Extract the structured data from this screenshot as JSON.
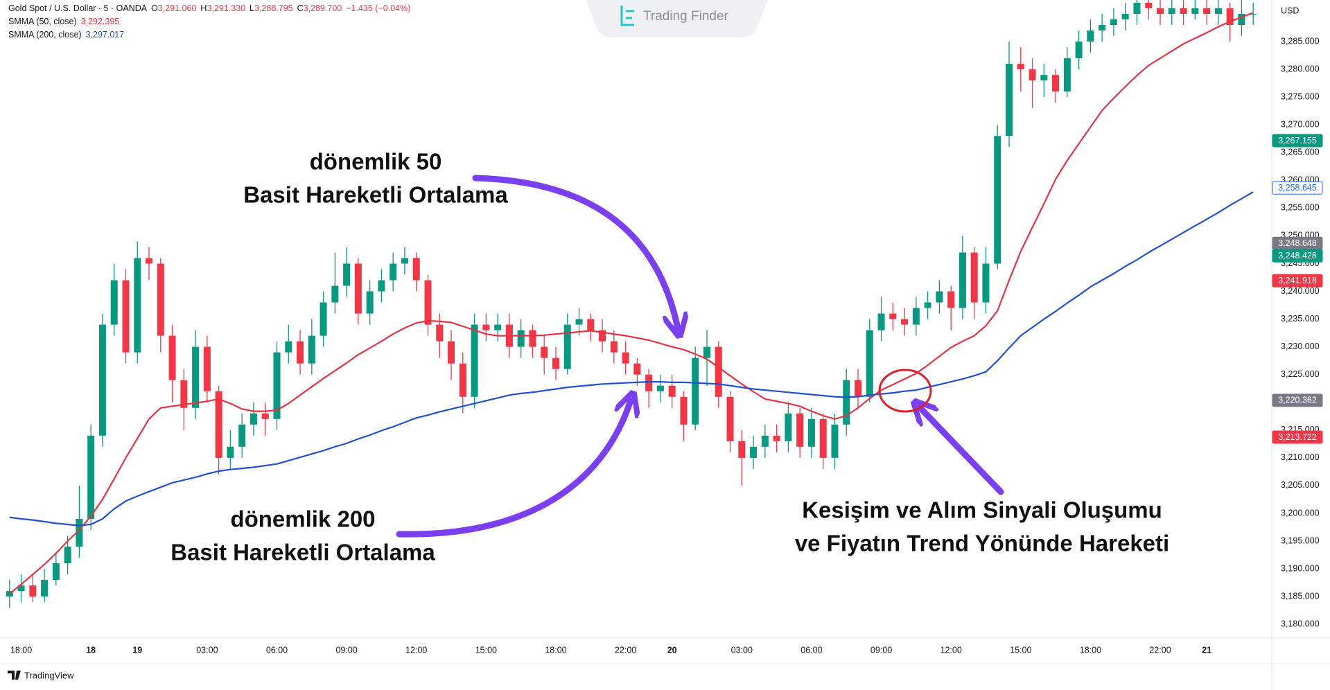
{
  "chart_data": {
    "type": "candlestick",
    "status": {
      "symbol": "Gold Spot / U.S. Dollar · 5 · OANDA",
      "ohlc": [
        [
          "O",
          "3,291.060"
        ],
        [
          "H",
          "3,291.330"
        ],
        [
          "L",
          "3,288.795"
        ],
        [
          "C",
          "3,289.700"
        ]
      ],
      "change": "−1.435 (−0.04%)"
    },
    "axis_unit": "USD",
    "watermark": "Trading Finder",
    "brand": "TradingView",
    "up_color": "#089981",
    "down_color": "#f23645",
    "grid": false,
    "categories": [
      null,
      "18:00",
      null,
      null,
      null,
      null,
      null,
      "18",
      null,
      null,
      null,
      "19",
      null,
      null,
      null,
      null,
      null,
      "03:00",
      null,
      null,
      null,
      null,
      null,
      "06:00",
      null,
      null,
      null,
      null,
      null,
      "09:00",
      null,
      null,
      null,
      null,
      null,
      "12:00",
      null,
      null,
      null,
      null,
      null,
      "15:00",
      null,
      null,
      null,
      null,
      null,
      "18:00",
      null,
      null,
      null,
      null,
      null,
      "22:00",
      null,
      null,
      null,
      "20",
      null,
      null,
      null,
      null,
      null,
      "03:00",
      null,
      null,
      null,
      null,
      null,
      "06:00",
      null,
      null,
      null,
      null,
      null,
      "09:00",
      null,
      null,
      null,
      null,
      null,
      "12:00",
      null,
      null,
      null,
      null,
      null,
      "15:00",
      null,
      null,
      null,
      null,
      null,
      "18:00",
      null,
      null,
      null,
      null,
      null,
      "22:00",
      null,
      null,
      null,
      "21",
      null,
      null,
      null,
      null
    ],
    "open": [
      3185,
      3186,
      3187,
      3185,
      3188,
      3191,
      3194,
      3199,
      3214,
      3234,
      3242,
      3229,
      3246,
      3245,
      3232,
      3224,
      3219,
      3230,
      3222,
      3210,
      3212,
      3216,
      3218,
      3217,
      3229,
      3231,
      3227,
      3232,
      3238,
      3241,
      3245,
      3236,
      3240,
      3242,
      3245,
      3246,
      3242,
      3234,
      3231,
      3227,
      3221,
      3234,
      3233,
      3234,
      3230,
      3233,
      3230,
      3228,
      3226,
      3234,
      3235,
      3233,
      3231,
      3229,
      3227,
      3225,
      3222,
      3223,
      3221,
      3216,
      3228,
      3230,
      3221,
      3213,
      3210,
      3212,
      3214,
      3213,
      3218,
      3212,
      3217,
      3210,
      3216,
      3224,
      3221,
      3233,
      3236,
      3235,
      3234,
      3237,
      3238,
      3240,
      3237,
      3247,
      3238,
      3245,
      3268,
      3281,
      3280,
      3278,
      3279,
      3276,
      3282,
      3285,
      3287,
      3288,
      3289,
      3290,
      3292,
      3291,
      3290,
      3291,
      3290,
      3291,
      3290,
      3291,
      3288,
      3290
    ],
    "high": [
      3188,
      3189,
      3189,
      3190,
      3193,
      3196,
      3205,
      3216,
      3236,
      3245,
      3244,
      3249,
      3248,
      3246,
      3234,
      3226,
      3233,
      3232,
      3223,
      3215,
      3218,
      3220,
      3220,
      3231,
      3234,
      3233,
      3235,
      3240,
      3247,
      3248,
      3246,
      3242,
      3244,
      3247,
      3248,
      3247,
      3243,
      3236,
      3233,
      3229,
      3236,
      3236,
      3236,
      3236,
      3235,
      3234,
      3232,
      3230,
      3236,
      3237,
      3236,
      3235,
      3233,
      3231,
      3228,
      3226,
      3225,
      3225,
      3222,
      3230,
      3233,
      3231,
      3222,
      3215,
      3214,
      3216,
      3216,
      3220,
      3219,
      3219,
      3218,
      3218,
      3226,
      3226,
      3235,
      3239,
      3238,
      3237,
      3239,
      3240,
      3242,
      3241,
      3250,
      3248,
      3248,
      3270,
      3285,
      3284,
      3282,
      3281,
      3280,
      3284,
      3287,
      3289,
      3290,
      3291,
      3292,
      3294,
      3294,
      3293,
      3293,
      3293,
      3293,
      3293,
      3294,
      3292,
      3293,
      3292
    ],
    "low": [
      3183,
      3184,
      3184,
      3184,
      3187,
      3189,
      3192,
      3197,
      3212,
      3232,
      3227,
      3227,
      3242,
      3229,
      3220,
      3215,
      3217,
      3220,
      3207,
      3208,
      3210,
      3214,
      3214,
      3215,
      3227,
      3225,
      3225,
      3230,
      3236,
      3239,
      3234,
      3234,
      3238,
      3240,
      3243,
      3240,
      3232,
      3228,
      3224,
      3218,
      3219,
      3231,
      3231,
      3228,
      3228,
      3228,
      3225,
      3224,
      3225,
      3232,
      3231,
      3229,
      3227,
      3225,
      3223,
      3219,
      3220,
      3219,
      3213,
      3215,
      3223,
      3219,
      3211,
      3205,
      3208,
      3210,
      3211,
      3211,
      3210,
      3210,
      3208,
      3208,
      3214,
      3219,
      3220,
      3231,
      3233,
      3232,
      3232,
      3235,
      3236,
      3233,
      3235,
      3235,
      3236,
      3244,
      3266,
      3276,
      3273,
      3275,
      3274,
      3275,
      3280,
      3283,
      3285,
      3286,
      3287,
      3288,
      3289,
      3288,
      3288,
      3288,
      3289,
      3288,
      3288,
      3285,
      3286,
      3288
    ],
    "close": [
      3186,
      3187,
      3185,
      3188,
      3191,
      3194,
      3199,
      3214,
      3234,
      3242,
      3229,
      3246,
      3245,
      3232,
      3224,
      3219,
      3230,
      3222,
      3210,
      3212,
      3216,
      3218,
      3217,
      3229,
      3231,
      3227,
      3232,
      3238,
      3241,
      3245,
      3236,
      3240,
      3242,
      3245,
      3246,
      3242,
      3234,
      3231,
      3227,
      3221,
      3234,
      3233,
      3234,
      3230,
      3233,
      3230,
      3228,
      3226,
      3234,
      3235,
      3233,
      3231,
      3229,
      3227,
      3225,
      3222,
      3223,
      3221,
      3216,
      3228,
      3230,
      3221,
      3213,
      3210,
      3212,
      3214,
      3213,
      3218,
      3212,
      3217,
      3210,
      3216,
      3224,
      3221,
      3233,
      3236,
      3235,
      3234,
      3237,
      3238,
      3240,
      3237,
      3247,
      3238,
      3245,
      3268,
      3281,
      3280,
      3278,
      3279,
      3276,
      3282,
      3285,
      3287,
      3288,
      3289,
      3290,
      3292,
      3291,
      3290,
      3291,
      3290,
      3291,
      3290,
      3291,
      3288,
      3290,
      3290
    ],
    "series": [
      {
        "name": "SMMA (50, close)",
        "legend_value": "3,292.395",
        "color": "#e8323f",
        "values": [
          3185.5,
          3187.2,
          3189.0,
          3190.8,
          3192.8,
          3195.0,
          3197.0,
          3199.5,
          3202.5,
          3206.2,
          3210.0,
          3213.5,
          3217.0,
          3219.0,
          3219.3,
          3219.6,
          3219.9,
          3220.2,
          3220.6,
          3219.8,
          3218.8,
          3218.4,
          3218.4,
          3218.6,
          3219.8,
          3221.3,
          3222.8,
          3224.3,
          3225.7,
          3227.1,
          3228.6,
          3229.8,
          3231.0,
          3232.3,
          3233.4,
          3234.3,
          3234.7,
          3234.6,
          3234.4,
          3233.7,
          3233.0,
          3232.3,
          3232.0,
          3232.0,
          3232.0,
          3232.0,
          3232.1,
          3232.3,
          3232.5,
          3232.7,
          3232.9,
          3232.6,
          3232.3,
          3232.0,
          3231.6,
          3231.2,
          3230.6,
          3230.0,
          3229.5,
          3228.7,
          3227.8,
          3226.3,
          3224.8,
          3223.3,
          3221.9,
          3220.6,
          3220.2,
          3219.8,
          3219.3,
          3218.4,
          3217.6,
          3217.0,
          3217.6,
          3219.0,
          3220.7,
          3222.2,
          3223.2,
          3224.2,
          3225.2,
          3226.7,
          3228.3,
          3229.9,
          3231.0,
          3232.0,
          3233.8,
          3236.5,
          3242.0,
          3247.2,
          3251.5,
          3255.8,
          3260.2,
          3263.6,
          3266.6,
          3269.6,
          3272.6,
          3274.8,
          3276.9,
          3278.9,
          3280.7,
          3282.0,
          3283.3,
          3284.6,
          3285.6,
          3286.6,
          3287.7,
          3288.6,
          3289.4,
          3290.2
        ]
      },
      {
        "name": "SMMA (200, close)",
        "legend_value": "3,297.017",
        "color": "#1f4fd6",
        "values": [
          3199.3,
          3199.0,
          3198.8,
          3198.5,
          3198.2,
          3198.0,
          3197.8,
          3198.0,
          3199.0,
          3200.8,
          3202.2,
          3203.1,
          3203.9,
          3204.7,
          3205.5,
          3206.0,
          3206.5,
          3207.1,
          3207.6,
          3207.9,
          3208.1,
          3208.3,
          3208.6,
          3208.9,
          3209.5,
          3210.1,
          3210.7,
          3211.3,
          3212.0,
          3212.6,
          3213.4,
          3214.1,
          3214.9,
          3215.6,
          3216.4,
          3217.2,
          3217.7,
          3218.3,
          3218.8,
          3219.3,
          3219.8,
          3220.3,
          3220.8,
          3221.3,
          3221.6,
          3221.8,
          3222.1,
          3222.4,
          3222.7,
          3222.9,
          3223.1,
          3223.3,
          3223.4,
          3223.5,
          3223.6,
          3223.7,
          3223.7,
          3223.6,
          3223.6,
          3223.5,
          3223.4,
          3223.3,
          3223.0,
          3222.7,
          3222.4,
          3222.2,
          3222.0,
          3221.8,
          3221.6,
          3221.4,
          3221.2,
          3221.0,
          3220.9,
          3221.0,
          3221.3,
          3221.5,
          3221.7,
          3222.0,
          3222.2,
          3222.7,
          3223.2,
          3223.7,
          3224.2,
          3224.8,
          3225.5,
          3227.5,
          3229.8,
          3232.0,
          3233.5,
          3235.0,
          3236.4,
          3237.9,
          3239.3,
          3240.8,
          3242.0,
          3243.2,
          3244.5,
          3245.7,
          3247.0,
          3248.2,
          3249.4,
          3250.6,
          3251.8,
          3253.0,
          3254.2,
          3255.5,
          3256.7,
          3257.9
        ]
      }
    ],
    "ylim": [
      3177.9,
      3292.5
    ],
    "yticks": [
      {
        "value": 3180,
        "label": "3,180.000"
      },
      {
        "value": 3185,
        "label": "3,185.000"
      },
      {
        "value": 3190,
        "label": "3,190.000"
      },
      {
        "value": 3195,
        "label": "3,195.000"
      },
      {
        "value": 3200,
        "label": "3,200.000"
      },
      {
        "value": 3205,
        "label": "3,205.000"
      },
      {
        "value": 3210,
        "label": "3,210.000"
      },
      {
        "value": 3215,
        "label": "3,215.000"
      },
      {
        "value": 3220,
        "label": "3,220.000"
      },
      {
        "value": 3225,
        "label": "3,225.000"
      },
      {
        "value": 3230,
        "label": "3,230.000"
      },
      {
        "value": 3235,
        "label": "3,235.000"
      },
      {
        "value": 3240,
        "label": "3,240.000"
      },
      {
        "value": 3245,
        "label": "3,245.000"
      },
      {
        "value": 3250,
        "label": "3,250.000"
      },
      {
        "value": 3255,
        "label": "3,255.000"
      },
      {
        "value": 3260,
        "label": "3,260.000"
      },
      {
        "value": 3265,
        "label": "3,265.000"
      },
      {
        "value": 3270,
        "label": "3,270.000"
      },
      {
        "value": 3275,
        "label": "3,275.000"
      },
      {
        "value": 3280,
        "label": "3,280.000"
      },
      {
        "value": 3285,
        "label": "3,285.000"
      }
    ],
    "price_labels": [
      {
        "value": 3267.155,
        "label": "3,267.155",
        "color": "#089981"
      },
      {
        "value": 3258.645,
        "label": "3,258.645",
        "color": "#2962ff",
        "outline": true
      },
      {
        "value": 3248.648,
        "label": "3,248.648",
        "color": "#787b86"
      },
      {
        "value": 3248.428,
        "label": "3,248.428",
        "color": "#089981"
      },
      {
        "value": 3241.918,
        "label": "3,241.918",
        "color": "#f23645"
      },
      {
        "value": 3220.362,
        "label": "3,220.362",
        "color": "#787b86"
      },
      {
        "value": 3213.722,
        "label": "3,213.722",
        "color": "#f23645"
      }
    ],
    "annotations": [
      [
        "dönemlik 50",
        "Basit Hareketli Ortalama"
      ],
      [
        "dönemlik 200",
        "Basit Hareketli Ortalama"
      ],
      [
        "Kesişim ve Alım Sinyali Oluşumu",
        "ve Fiyatın Trend Yönünde Hareketi"
      ]
    ]
  }
}
